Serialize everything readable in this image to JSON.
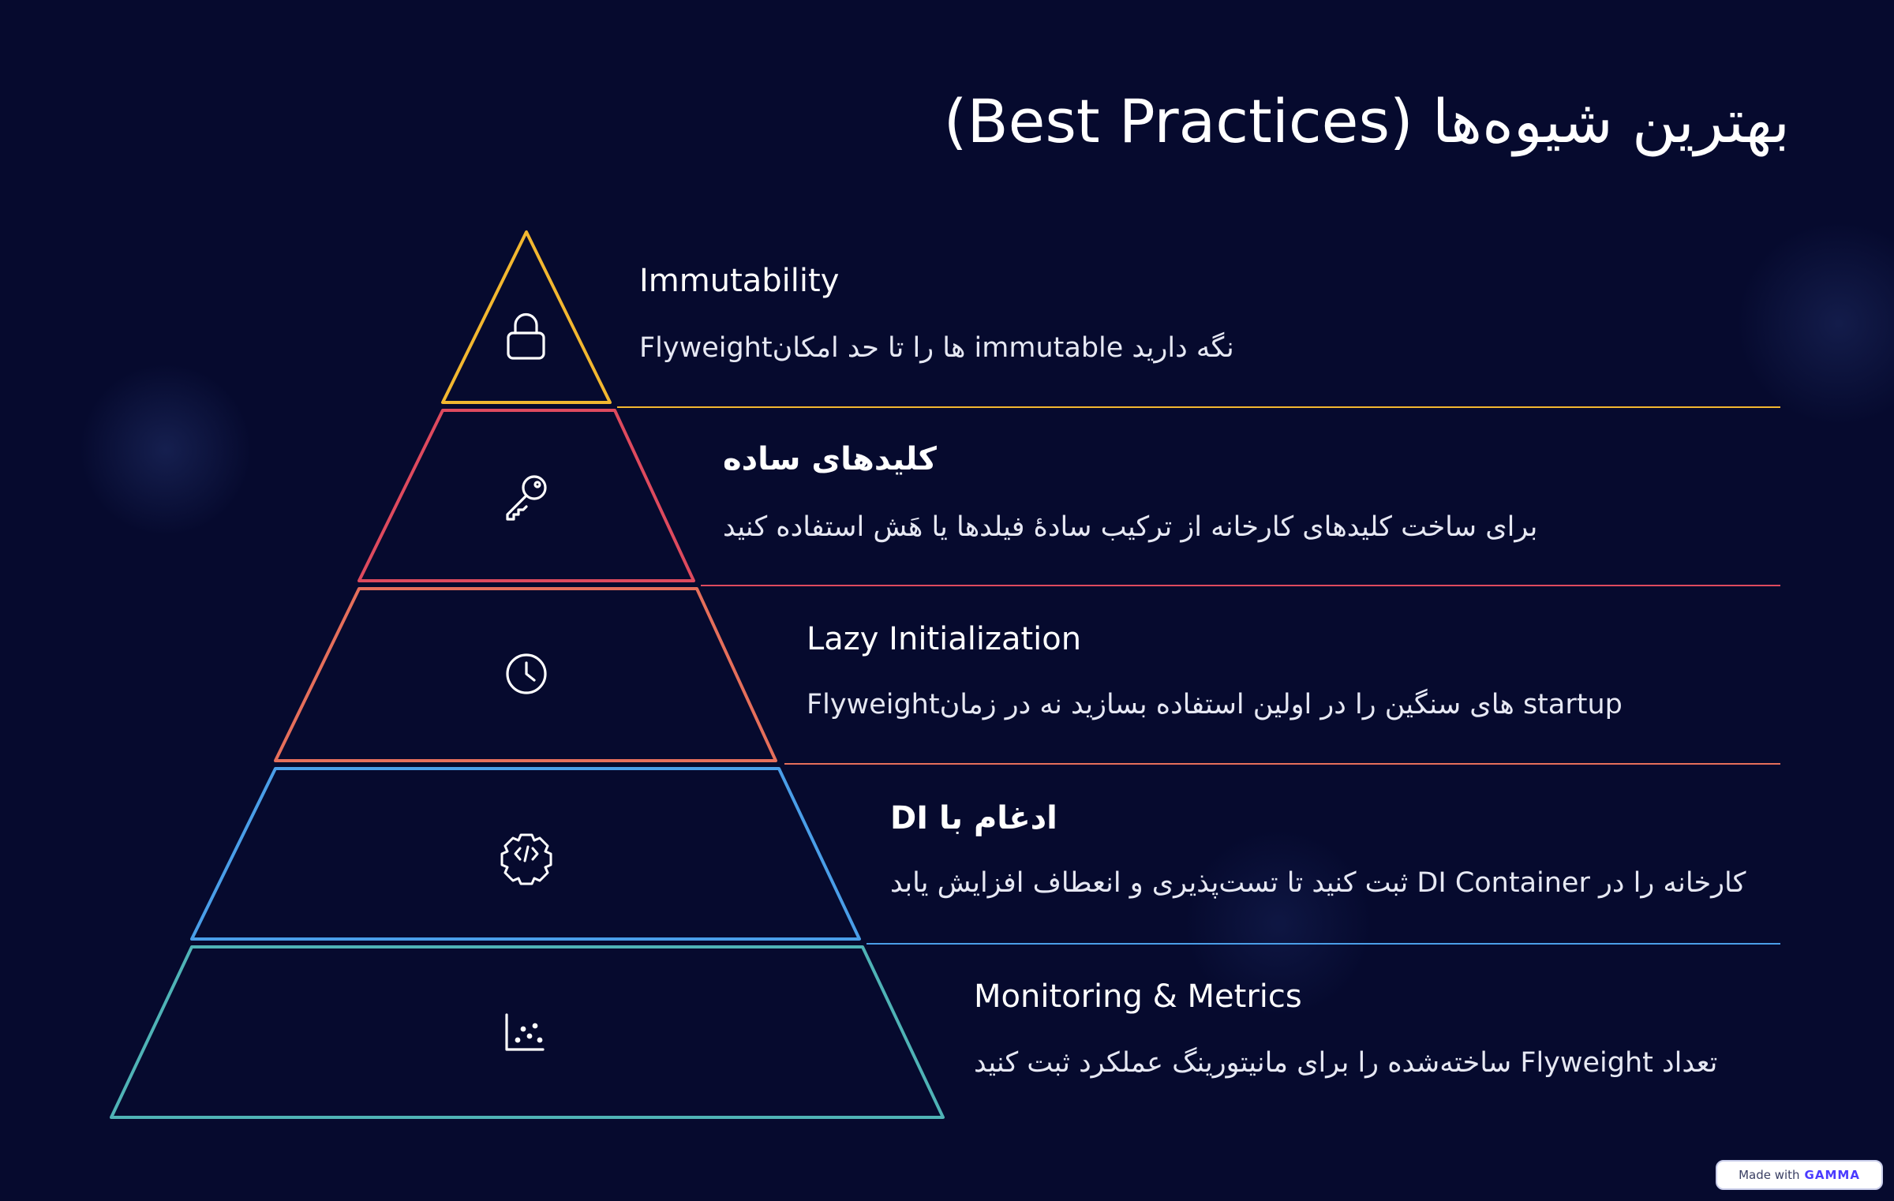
{
  "slide": {
    "title": "بهترین شیوه‌ها (Best Practices)",
    "accent_background": "#060a2e"
  },
  "tiers": [
    {
      "title": "Immutability",
      "description": "Flyweightها را تا حد امکان immutable نگه دارید",
      "icon": "lock-icon",
      "color": "#f2b730"
    },
    {
      "title": "کلیدهای ساده",
      "description": "برای ساخت کلیدهای کارخانه از ترکیب سادهٔ فیلدها یا هَش استفاده کنید",
      "icon": "key-icon",
      "color": "#de4a5e"
    },
    {
      "title": "Lazy Initialization",
      "description": "Flyweightهای سنگین را در اولین استفاده بسازید نه در زمان startup",
      "icon": "clock-icon",
      "color": "#e56f5b"
    },
    {
      "title": "ادغام با DI",
      "description": "کارخانه را در DI Container ثبت کنید تا تست‌پذیری و انعطاف افزایش یابد",
      "icon": "code-gear-icon",
      "color": "#4a9ee8"
    },
    {
      "title": "Monitoring & Metrics",
      "description": "تعداد Flyweight ساخته‌شده را برای مانیتورینگ عملکرد ثبت کنید",
      "icon": "scatter-chart-icon",
      "color": "#4fb3b6"
    }
  ],
  "badge": {
    "prefix": "Made with",
    "brand": "GAMMA"
  }
}
